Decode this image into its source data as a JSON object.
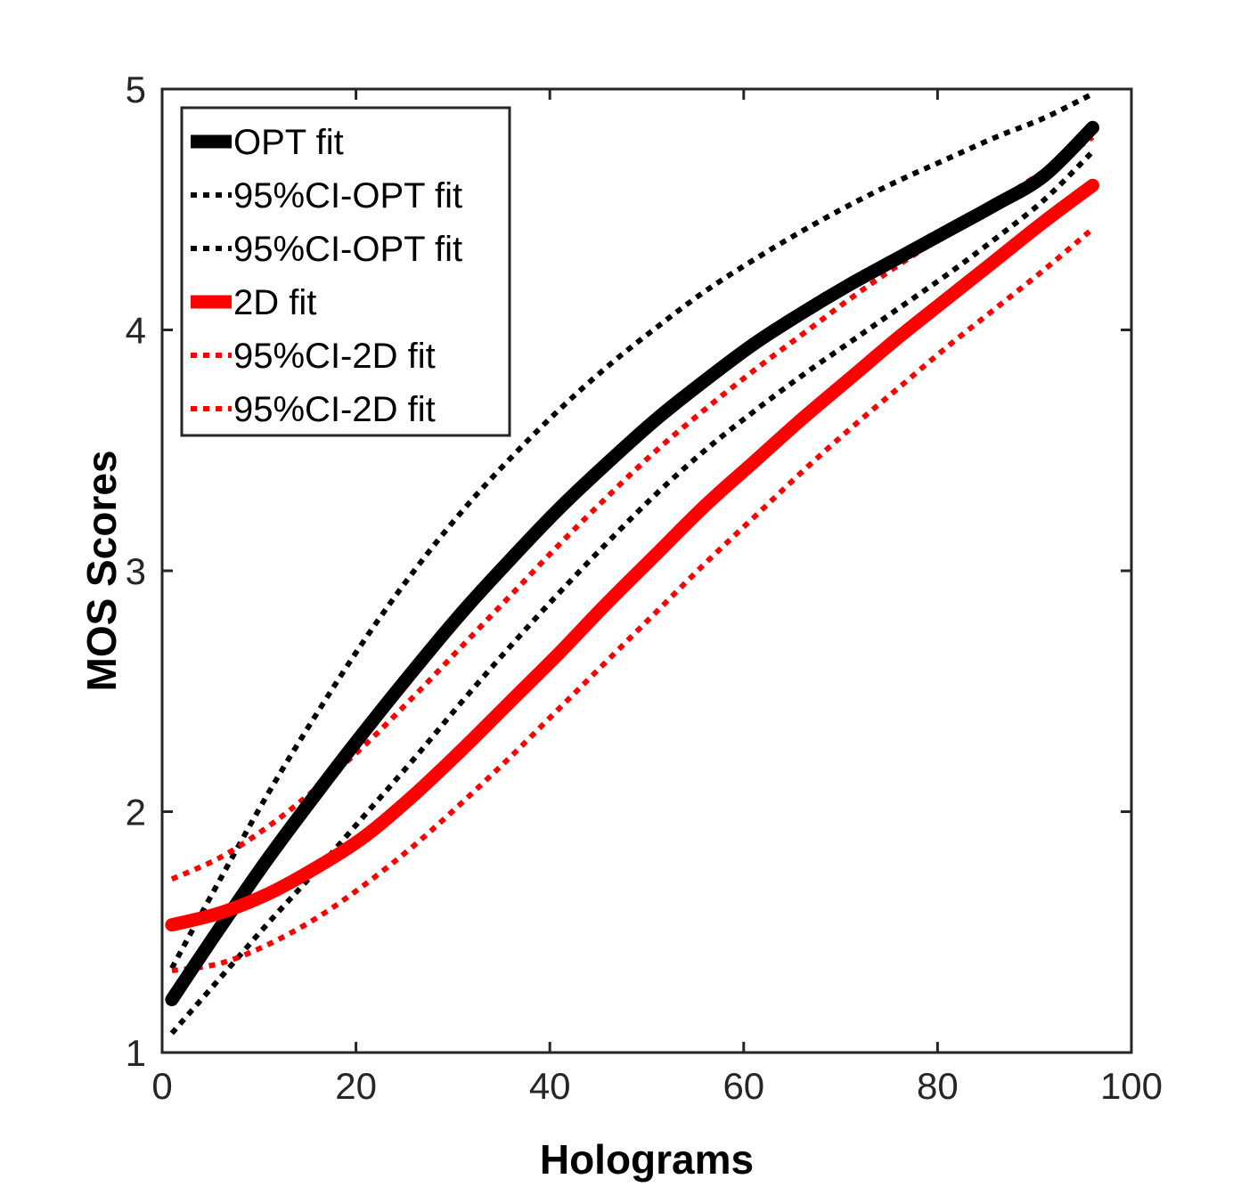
{
  "chart_data": {
    "type": "line",
    "title": "",
    "xlabel": "Holograms",
    "ylabel": "MOS Scores",
    "xlim": [
      0,
      100
    ],
    "ylim": [
      1,
      5
    ],
    "xticks": [
      0,
      20,
      40,
      60,
      80,
      100
    ],
    "yticks": [
      1,
      2,
      3,
      4,
      5
    ],
    "grid": false,
    "legend_position": "top-left",
    "x": [
      1,
      6,
      11,
      16,
      21,
      26,
      31,
      36,
      41,
      46,
      51,
      56,
      61,
      66,
      71,
      76,
      81,
      86,
      91,
      96
    ],
    "series": [
      {
        "name": "OPT fit",
        "style": "solid",
        "color": "#000000",
        "values": [
          1.22,
          1.52,
          1.81,
          2.08,
          2.34,
          2.59,
          2.83,
          3.05,
          3.26,
          3.45,
          3.63,
          3.79,
          3.94,
          4.07,
          4.19,
          4.3,
          4.41,
          4.52,
          4.64,
          4.84
        ]
      },
      {
        "name": "95%CI-OPT fit",
        "style": "dotted",
        "color": "#000000",
        "values": [
          1.35,
          1.72,
          2.08,
          2.41,
          2.72,
          3.0,
          3.25,
          3.47,
          3.67,
          3.85,
          4.01,
          4.16,
          4.29,
          4.41,
          4.52,
          4.62,
          4.71,
          4.8,
          4.88,
          4.98
        ]
      },
      {
        "name": "95%CI-OPT fit",
        "style": "dotted",
        "color": "#000000",
        "values": [
          1.08,
          1.31,
          1.54,
          1.76,
          1.99,
          2.22,
          2.46,
          2.69,
          2.91,
          3.12,
          3.32,
          3.5,
          3.66,
          3.81,
          3.95,
          4.09,
          4.23,
          4.38,
          4.54,
          4.74
        ]
      },
      {
        "name": "2D fit",
        "style": "solid",
        "color": "#ff0000",
        "values": [
          1.53,
          1.58,
          1.66,
          1.77,
          1.9,
          2.07,
          2.26,
          2.46,
          2.66,
          2.87,
          3.07,
          3.27,
          3.45,
          3.63,
          3.8,
          3.97,
          4.13,
          4.29,
          4.45,
          4.6
        ]
      },
      {
        "name": "95%CI-2D fit",
        "style": "dotted",
        "color": "#ff0000",
        "values": [
          1.72,
          1.81,
          1.94,
          2.1,
          2.28,
          2.48,
          2.69,
          2.9,
          3.11,
          3.31,
          3.5,
          3.67,
          3.83,
          3.98,
          4.13,
          4.27,
          4.4,
          4.53,
          4.66,
          4.8
        ]
      },
      {
        "name": "95%CI-2D fit",
        "style": "dotted",
        "color": "#ff0000",
        "values": [
          1.34,
          1.37,
          1.45,
          1.56,
          1.7,
          1.86,
          2.04,
          2.23,
          2.43,
          2.63,
          2.83,
          3.03,
          3.22,
          3.41,
          3.59,
          3.76,
          3.93,
          4.09,
          4.25,
          4.42
        ]
      }
    ]
  }
}
